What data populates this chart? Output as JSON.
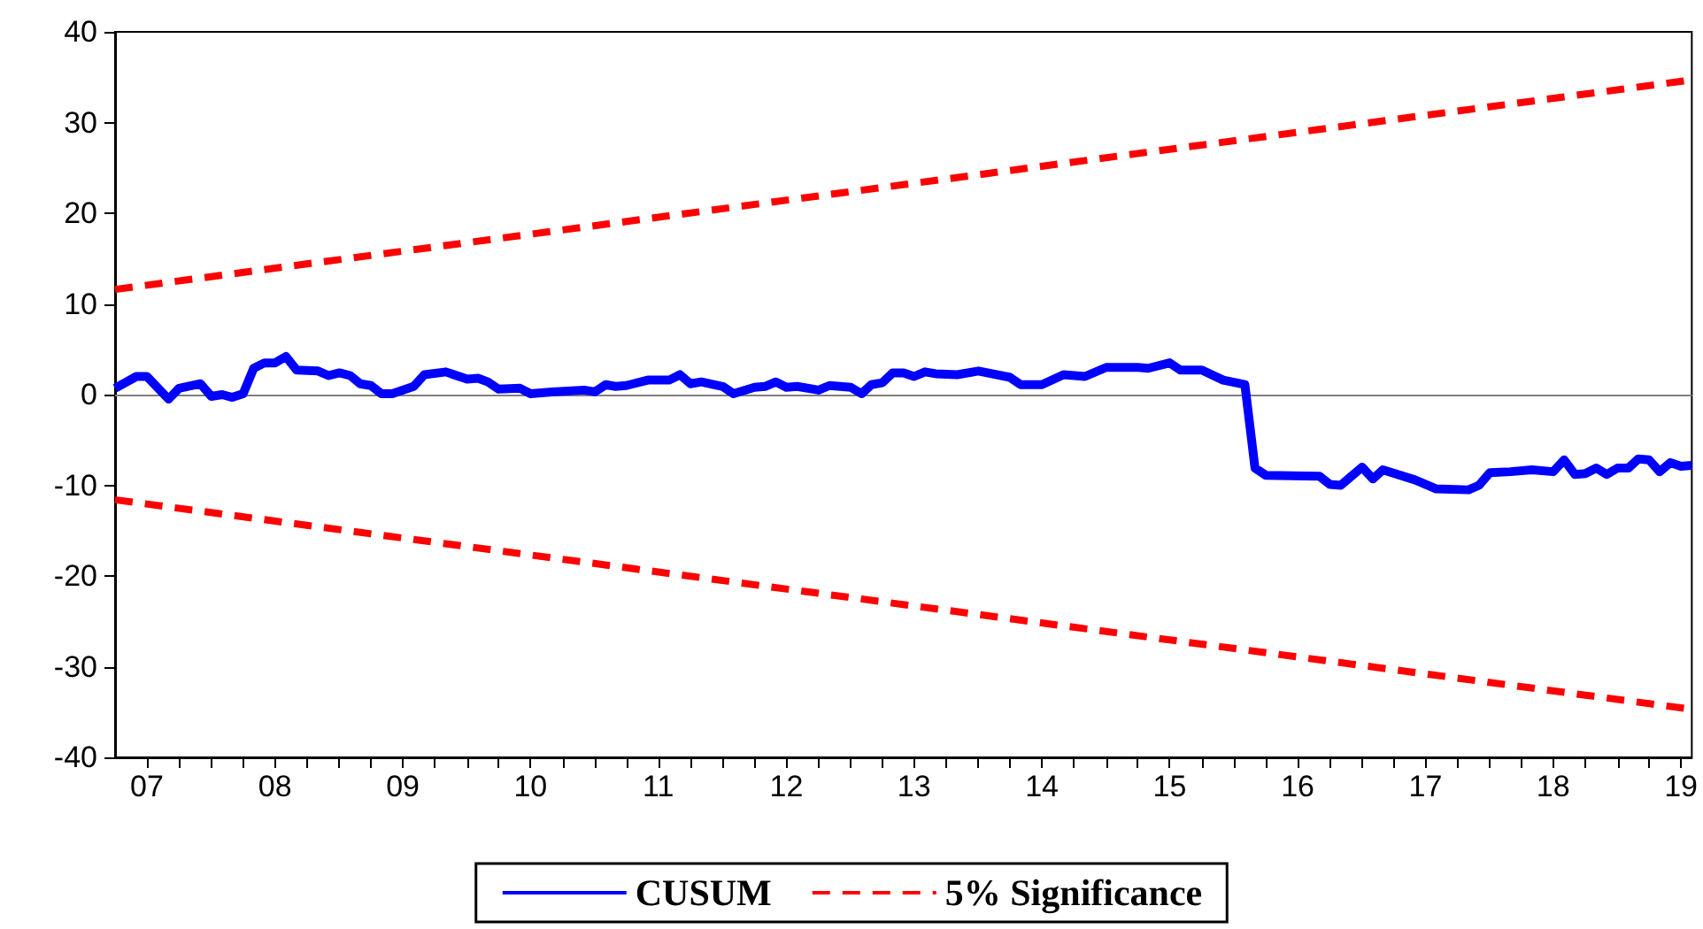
{
  "chart_data": {
    "type": "line",
    "series": [
      {
        "name": "CUSUM",
        "color": "#0000ff",
        "line_style": "solid",
        "x": [
          "2007-04",
          "2007-06",
          "2007-07",
          "2007-09",
          "2007-10",
          "2007-12",
          "2008-01",
          "2008-02",
          "2008-03",
          "2008-04",
          "2008-05",
          "2008-06",
          "2008-07",
          "2008-08",
          "2008-09",
          "2008-11",
          "2008-12",
          "2009-01",
          "2009-02",
          "2009-03",
          "2009-04",
          "2009-05",
          "2009-06",
          "2009-08",
          "2009-09",
          "2009-11",
          "2010-01",
          "2010-02",
          "2010-03",
          "2010-04",
          "2010-06",
          "2010-07",
          "2010-09",
          "2010-12",
          "2011-01",
          "2011-02",
          "2011-03",
          "2011-04",
          "2011-06",
          "2011-08",
          "2011-09",
          "2011-10",
          "2011-11",
          "2012-01",
          "2012-02",
          "2012-04",
          "2012-05",
          "2012-06",
          "2012-07",
          "2012-08",
          "2012-10",
          "2012-11",
          "2013-01",
          "2013-02",
          "2013-03",
          "2013-04",
          "2013-05",
          "2013-06",
          "2013-07",
          "2013-08",
          "2013-09",
          "2013-11",
          "2014-01",
          "2014-04",
          "2014-05",
          "2014-07",
          "2014-09",
          "2014-11",
          "2015-01",
          "2015-04",
          "2015-05",
          "2015-07",
          "2015-08",
          "2015-10",
          "2015-12",
          "2016-02",
          "2016-03",
          "2016-04",
          "2016-09",
          "2016-10",
          "2016-11",
          "2017-01",
          "2017-02",
          "2017-03",
          "2017-06",
          "2017-08",
          "2017-11",
          "2017-12",
          "2018-01",
          "2018-03",
          "2018-05",
          "2018-07",
          "2018-08",
          "2018-09",
          "2018-10",
          "2018-11",
          "2018-12",
          "2019-01",
          "2019-02",
          "2019-03",
          "2019-04",
          "2019-05",
          "2019-06",
          "2019-07",
          "2019-08"
        ],
        "values": [
          0.7,
          2,
          2,
          -0.5,
          0.7,
          1.2,
          -0.2,
          0,
          -0.3,
          0.1,
          2.9,
          3.5,
          3.5,
          4.2,
          2.7,
          2.6,
          2.1,
          2.4,
          2.1,
          1.2,
          1,
          0.1,
          0.1,
          0.9,
          2.2,
          2.5,
          1.7,
          1.8,
          1.4,
          0.6,
          0.7,
          0.1,
          0.3,
          0.5,
          0.3,
          1.1,
          0.9,
          1,
          1.6,
          1.6,
          2.2,
          1.2,
          1.4,
          0.9,
          0.1,
          0.8,
          0.9,
          1.4,
          0.8,
          0.9,
          0.5,
          1,
          0.8,
          0.1,
          1.1,
          1.3,
          2.4,
          2.4,
          2,
          2.5,
          2.3,
          2.2,
          2.6,
          1.9,
          1.1,
          1.1,
          2.2,
          2,
          3,
          3,
          2.9,
          3.5,
          2.7,
          2.7,
          1.6,
          1.1,
          -8.1,
          -8.9,
          -9,
          -9.9,
          -10,
          -8,
          -9.3,
          -8.3,
          -9.4,
          -10.4,
          -10.5,
          -10,
          -8.6,
          -8.5,
          -8.3,
          -8.5,
          -7.2,
          -8.8,
          -8.7,
          -8.1,
          -8.8,
          -8.1,
          -8.1,
          -7.1,
          -7.2,
          -8.5,
          -7.5,
          -7.9,
          -7.8
        ]
      },
      {
        "name": "5% Significance",
        "color": "#ff0000",
        "line_style": "dashed",
        "x": [
          "2007-04",
          "2019-08"
        ],
        "values": [
          11.6,
          34.7
        ]
      },
      {
        "color": "#ff0000",
        "line_style": "dashed",
        "x": [
          "2007-04",
          "2019-08"
        ],
        "values": [
          -11.6,
          -34.7
        ]
      }
    ],
    "xlim": [
      "2007-04",
      "2019-08"
    ],
    "xticks": [
      {
        "value": "2007-07",
        "label": "07"
      },
      {
        "value": "2008-07",
        "label": "08"
      },
      {
        "value": "2009-07",
        "label": "09"
      },
      {
        "value": "2010-07",
        "label": "10"
      },
      {
        "value": "2011-07",
        "label": "11"
      },
      {
        "value": "2012-07",
        "label": "12"
      },
      {
        "value": "2013-07",
        "label": "13"
      },
      {
        "value": "2014-07",
        "label": "14"
      },
      {
        "value": "2015-07",
        "label": "15"
      },
      {
        "value": "2016-07",
        "label": "16"
      },
      {
        "value": "2017-07",
        "label": "17"
      },
      {
        "value": "2018-07",
        "label": "18"
      },
      {
        "value": "2019-07",
        "label": "19"
      },
      {
        "value": "2007-10",
        "label": null
      },
      {
        "value": "2008-01",
        "label": null
      },
      {
        "value": "2008-04",
        "label": null
      },
      {
        "value": "2008-10",
        "label": null
      },
      {
        "value": "2009-01",
        "label": null
      },
      {
        "value": "2009-04",
        "label": null
      },
      {
        "value": "2009-10",
        "label": null
      },
      {
        "value": "2010-01",
        "label": null
      },
      {
        "value": "2010-04",
        "label": null
      },
      {
        "value": "2010-10",
        "label": null
      },
      {
        "value": "2011-01",
        "label": null
      },
      {
        "value": "2011-04",
        "label": null
      },
      {
        "value": "2011-10",
        "label": null
      },
      {
        "value": "2012-01",
        "label": null
      },
      {
        "value": "2012-04",
        "label": null
      },
      {
        "value": "2012-10",
        "label": null
      },
      {
        "value": "2013-01",
        "label": null
      },
      {
        "value": "2013-04",
        "label": null
      },
      {
        "value": "2013-10",
        "label": null
      },
      {
        "value": "2014-01",
        "label": null
      },
      {
        "value": "2014-04",
        "label": null
      },
      {
        "value": "2014-10",
        "label": null
      },
      {
        "value": "2015-01",
        "label": null
      },
      {
        "value": "2015-04",
        "label": null
      },
      {
        "value": "2015-10",
        "label": null
      },
      {
        "value": "2016-01",
        "label": null
      },
      {
        "value": "2016-04",
        "label": null
      },
      {
        "value": "2016-10",
        "label": null
      },
      {
        "value": "2017-01",
        "label": null
      },
      {
        "value": "2017-04",
        "label": null
      },
      {
        "value": "2017-10",
        "label": null
      },
      {
        "value": "2018-01",
        "label": null
      },
      {
        "value": "2018-04",
        "label": null
      },
      {
        "value": "2018-10",
        "label": null
      },
      {
        "value": "2019-01",
        "label": null
      },
      {
        "value": "2019-04",
        "label": null
      }
    ],
    "ylim": [
      -40,
      40
    ],
    "yticks": [
      -40,
      -30,
      -20,
      -10,
      0,
      10,
      20,
      30,
      40
    ],
    "ref_lines": [
      {
        "axis": "y",
        "value": 0,
        "color": "#808080"
      }
    ],
    "grid": false,
    "legend": "bottom",
    "marker": "none"
  }
}
